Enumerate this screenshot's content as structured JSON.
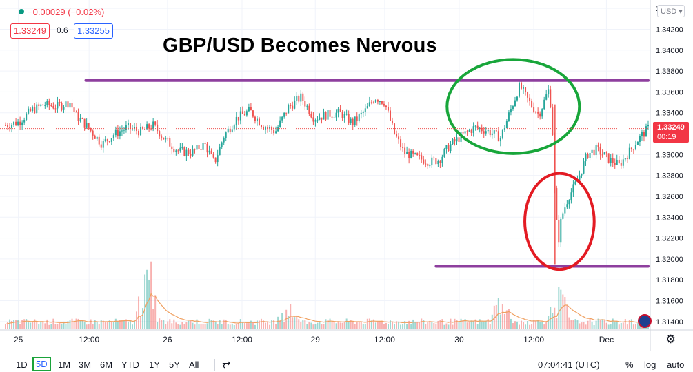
{
  "header": {
    "change": "−0.00029 (−0.02%)",
    "bid": "1.33249",
    "spread": "0.6",
    "ask": "1.33255",
    "currency": "USD ▾"
  },
  "annotation_title": "GBP/USD Becomes Nervous",
  "price_label": {
    "price": "1.33249",
    "countdown": "00:19"
  },
  "chart_data": {
    "type": "candlestick",
    "title": "GBP/USD Becomes Nervous",
    "ylim": [
      1.3132,
      1.3448
    ],
    "y_ticks": [
      "1.34400",
      "1.34200",
      "1.34000",
      "1.33800",
      "1.33600",
      "1.33400",
      "1.33200",
      "1.33000",
      "1.32800",
      "1.32600",
      "1.32400",
      "1.32200",
      "1.32000",
      "1.31800",
      "1.31600",
      "1.31400"
    ],
    "x_ticks": [
      {
        "label": "25",
        "t": 0.02
      },
      {
        "label": "12:00",
        "t": 0.13
      },
      {
        "label": "26",
        "t": 0.252
      },
      {
        "label": "12:00",
        "t": 0.368
      },
      {
        "label": "29",
        "t": 0.482
      },
      {
        "label": "12:00",
        "t": 0.59
      },
      {
        "label": "30",
        "t": 0.706
      },
      {
        "label": "12:00",
        "t": 0.822
      },
      {
        "label": "Dec",
        "t": 0.935
      }
    ],
    "close_path": [
      [
        0.0,
        1.3328
      ],
      [
        0.02,
        1.3331
      ],
      [
        0.04,
        1.3342
      ],
      [
        0.06,
        1.3348
      ],
      [
        0.08,
        1.3346
      ],
      [
        0.1,
        1.335
      ],
      [
        0.11,
        1.3337
      ],
      [
        0.13,
        1.3325
      ],
      [
        0.15,
        1.331
      ],
      [
        0.17,
        1.332
      ],
      [
        0.19,
        1.3326
      ],
      [
        0.21,
        1.3322
      ],
      [
        0.23,
        1.3328
      ],
      [
        0.25,
        1.3313
      ],
      [
        0.27,
        1.3303
      ],
      [
        0.29,
        1.3302
      ],
      [
        0.31,
        1.331
      ],
      [
        0.325,
        1.3292
      ],
      [
        0.34,
        1.3318
      ],
      [
        0.36,
        1.3335
      ],
      [
        0.38,
        1.3342
      ],
      [
        0.4,
        1.3328
      ],
      [
        0.42,
        1.3322
      ],
      [
        0.44,
        1.3345
      ],
      [
        0.46,
        1.3355
      ],
      [
        0.48,
        1.3335
      ],
      [
        0.5,
        1.3338
      ],
      [
        0.52,
        1.334
      ],
      [
        0.54,
        1.333
      ],
      [
        0.56,
        1.3342
      ],
      [
        0.575,
        1.3355
      ],
      [
        0.59,
        1.335
      ],
      [
        0.605,
        1.332
      ],
      [
        0.62,
        1.3302
      ],
      [
        0.64,
        1.3297
      ],
      [
        0.66,
        1.3293
      ],
      [
        0.675,
        1.3295
      ],
      [
        0.69,
        1.3308
      ],
      [
        0.71,
        1.3318
      ],
      [
        0.73,
        1.3326
      ],
      [
        0.75,
        1.3323
      ],
      [
        0.77,
        1.3316
      ],
      [
        0.785,
        1.3341
      ],
      [
        0.8,
        1.3366
      ],
      [
        0.815,
        1.335
      ],
      [
        0.83,
        1.3338
      ],
      [
        0.845,
        1.3362
      ],
      [
        0.85,
        1.334
      ],
      [
        0.855,
        1.3255
      ],
      [
        0.86,
        1.3215
      ],
      [
        0.865,
        1.324
      ],
      [
        0.875,
        1.3258
      ],
      [
        0.89,
        1.3275
      ],
      [
        0.905,
        1.33
      ],
      [
        0.92,
        1.3305
      ],
      [
        0.94,
        1.3295
      ],
      [
        0.955,
        1.329
      ],
      [
        0.97,
        1.3302
      ],
      [
        0.985,
        1.3315
      ],
      [
        1.0,
        1.3325
      ]
    ],
    "volume_peaks": [
      [
        0.22,
        0.9
      ],
      [
        0.86,
        0.55
      ],
      [
        0.44,
        0.3
      ],
      [
        0.77,
        0.35
      ]
    ],
    "horizontal_lines": [
      {
        "price": 1.3371,
        "from": 0.125,
        "to": 1.0,
        "color": "#8e3f9e"
      },
      {
        "price": 1.3193,
        "from": 0.67,
        "to": 1.0,
        "color": "#8e3f9e"
      }
    ],
    "ellipses": [
      {
        "cx": 0.79,
        "cy": 1.3346,
        "rx": 0.103,
        "ry": 0.0045,
        "color": "#18a63a"
      },
      {
        "cx": 0.862,
        "cy": 1.3236,
        "rx": 0.054,
        "ry": 0.0046,
        "color": "#e31b23"
      }
    ],
    "last_price": 1.33249
  },
  "timeframes": [
    "1D",
    "5D",
    "1M",
    "3M",
    "6M",
    "YTD",
    "1Y",
    "5Y",
    "All"
  ],
  "selected_timeframe": "5D",
  "clock": "07:04:41 (UTC)",
  "right_tools": [
    "%",
    "log",
    "auto"
  ],
  "colors": {
    "up": "#26a69a",
    "down": "#ef5350",
    "level": "#8e3f9e"
  }
}
